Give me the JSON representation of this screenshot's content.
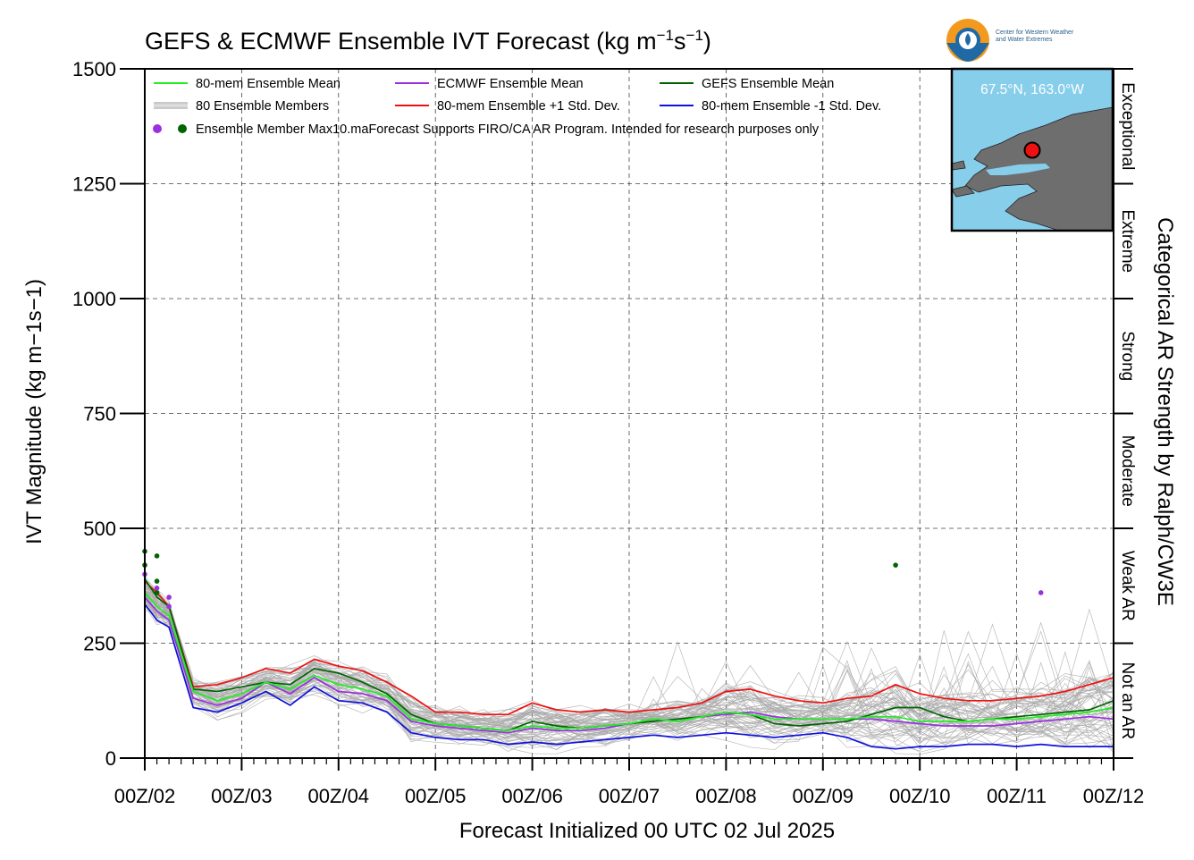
{
  "header": {
    "title_main": "GEFS & ECMWF Ensemble IVT Forecast (kg m",
    "title_sup1": "−1",
    "title_mid": "s",
    "title_sup2": "−1",
    "title_end": ")",
    "logo_line1": "Center for Western Weather",
    "logo_line2": "and Water Extremes"
  },
  "inset": {
    "location": "67.5°N, 163.0°W",
    "ocean_color": "#87ceeb",
    "land_color": "#6e6e6e"
  },
  "legend": [
    {
      "label": "80-mem Ensemble Mean",
      "color": "#22ee22",
      "style": "line"
    },
    {
      "label": "ECMWF Ensemble Mean",
      "color": "#9b30e0",
      "style": "line"
    },
    {
      "label": "GEFS Ensemble Mean",
      "color": "#006400",
      "style": "line"
    },
    {
      "label": "80 Ensemble Members",
      "color": "#a9a9a9",
      "style": "thin"
    },
    {
      "label": "80-mem Ensemble +1 Std. Dev.",
      "color": "#ee1111",
      "style": "line"
    },
    {
      "label": "80-mem Ensemble -1 Std. Dev.",
      "color": "#1111dd",
      "style": "line"
    },
    {
      "label": "Ensemble Member Max",
      "color": "#9b30e0",
      "color2": "#006400",
      "style": "dots"
    }
  ],
  "legend_note": "10.maForecast Supports FIRO/CA AR Program. Intended for research purposes only",
  "right_axis": {
    "label": "Categorical AR Strength by Ralph/CW3E",
    "categories": [
      {
        "name": "Not an AR",
        "from": 0,
        "to": 250
      },
      {
        "name": "Weak AR",
        "from": 250,
        "to": 500
      },
      {
        "name": "Moderate",
        "from": 500,
        "to": 750
      },
      {
        "name": "Strong",
        "from": 750,
        "to": 1000
      },
      {
        "name": "Extreme",
        "from": 1000,
        "to": 1250
      },
      {
        "name": "Exceptional",
        "from": 1250,
        "to": 1500
      }
    ]
  },
  "chart_data": {
    "type": "line",
    "title": "GEFS & ECMWF Ensemble IVT Forecast (kg m−1s−1)",
    "xlabel": "Forecast Initialized 00 UTC 02 Jul 2025",
    "ylabel": "IVT Magnitude (kg m−1s−1)",
    "ylim": [
      0,
      1500
    ],
    "yticks": [
      0,
      250,
      500,
      750,
      1000,
      1250,
      1500
    ],
    "xlim": [
      0,
      10
    ],
    "x_ticks": [
      "00Z/02",
      "00Z/03",
      "00Z/04",
      "00Z/05",
      "00Z/06",
      "00Z/07",
      "00Z/08",
      "00Z/09",
      "00Z/10",
      "00Z/11",
      "00Z/12"
    ],
    "grid": true,
    "x_days": [
      0,
      0.125,
      0.25,
      0.5,
      0.75,
      1.0,
      1.25,
      1.5,
      1.75,
      2.0,
      2.25,
      2.5,
      2.75,
      3.0,
      3.25,
      3.5,
      3.75,
      4.0,
      4.25,
      4.5,
      4.75,
      5.0,
      5.25,
      5.5,
      5.75,
      6.0,
      6.25,
      6.5,
      6.75,
      7.0,
      7.25,
      7.5,
      7.75,
      8.0,
      8.25,
      8.5,
      8.75,
      9.0,
      9.25,
      9.5,
      9.75,
      10.0
    ],
    "series": [
      {
        "name": "80-mem Ensemble +1 Std. Dev.",
        "color": "#ee1111",
        "values": [
          385,
          360,
          330,
          155,
          160,
          175,
          195,
          185,
          215,
          200,
          190,
          165,
          135,
          100,
          100,
          95,
          95,
          120,
          105,
          100,
          105,
          100,
          105,
          110,
          120,
          145,
          150,
          135,
          125,
          120,
          130,
          135,
          160,
          140,
          130,
          125,
          125,
          130,
          135,
          145,
          160,
          175
        ]
      },
      {
        "name": "80-mem Ensemble -1 Std. Dev.",
        "color": "#1111dd",
        "values": [
          335,
          300,
          285,
          110,
          100,
          120,
          145,
          115,
          155,
          125,
          120,
          100,
          55,
          45,
          40,
          40,
          30,
          35,
          30,
          35,
          40,
          45,
          50,
          45,
          50,
          55,
          50,
          45,
          50,
          55,
          45,
          25,
          20,
          25,
          25,
          30,
          30,
          25,
          30,
          25,
          25,
          25
        ]
      },
      {
        "name": "80-mem Ensemble Mean",
        "color": "#22ee22",
        "values": [
          360,
          330,
          310,
          145,
          125,
          140,
          165,
          150,
          180,
          160,
          150,
          135,
          85,
          75,
          70,
          65,
          60,
          70,
          65,
          65,
          70,
          75,
          85,
          80,
          90,
          100,
          95,
          85,
          85,
          85,
          85,
          90,
          90,
          80,
          80,
          80,
          85,
          85,
          90,
          95,
          100,
          110
        ]
      },
      {
        "name": "ECMWF Ensemble Mean",
        "color": "#9b30e0",
        "values": [
          350,
          320,
          300,
          130,
          115,
          130,
          165,
          140,
          175,
          145,
          140,
          125,
          80,
          70,
          65,
          60,
          55,
          65,
          60,
          60,
          65,
          75,
          80,
          85,
          90,
          95,
          100,
          90,
          85,
          85,
          85,
          85,
          80,
          75,
          70,
          70,
          70,
          75,
          80,
          85,
          90,
          85
        ]
      },
      {
        "name": "GEFS Ensemble Mean",
        "color": "#006400",
        "values": [
          390,
          350,
          330,
          150,
          145,
          155,
          165,
          160,
          195,
          185,
          165,
          140,
          95,
          75,
          70,
          65,
          60,
          80,
          70,
          65,
          70,
          75,
          80,
          85,
          90,
          100,
          95,
          75,
          70,
          75,
          80,
          95,
          110,
          110,
          90,
          80,
          85,
          90,
          95,
          100,
          105,
          125
        ]
      }
    ],
    "ensemble_member_max": [
      {
        "model": "GEFS",
        "color": "#006400",
        "x": 0.0,
        "y": 450
      },
      {
        "model": "GEFS",
        "color": "#006400",
        "x": 0.0,
        "y": 420
      },
      {
        "model": "GEFS",
        "color": "#006400",
        "x": 0.125,
        "y": 440
      },
      {
        "model": "GEFS",
        "color": "#006400",
        "x": 0.125,
        "y": 385
      },
      {
        "model": "GEFS",
        "color": "#006400",
        "x": 0.125,
        "y": 360
      },
      {
        "model": "ECMWF",
        "color": "#9b30e0",
        "x": 0.0,
        "y": 400
      },
      {
        "model": "ECMWF",
        "color": "#9b30e0",
        "x": 0.125,
        "y": 370
      },
      {
        "model": "ECMWF",
        "color": "#9b30e0",
        "x": 0.25,
        "y": 350
      },
      {
        "model": "ECMWF",
        "color": "#9b30e0",
        "x": 0.25,
        "y": 330
      },
      {
        "model": "GEFS",
        "color": "#006400",
        "x": 7.75,
        "y": 420
      },
      {
        "model": "ECMWF",
        "color": "#9b30e0",
        "x": 9.25,
        "y": 360
      }
    ]
  }
}
